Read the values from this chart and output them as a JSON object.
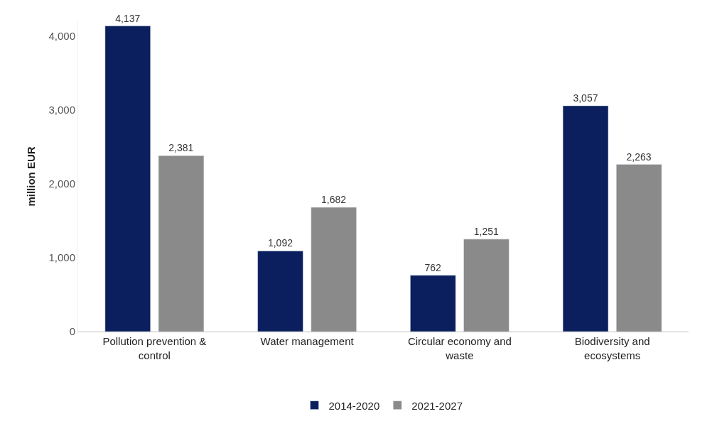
{
  "chart_data": {
    "type": "bar",
    "ylabel": "million EUR",
    "categories": [
      "Pollution prevention & control",
      "Water management",
      "Circular economy and waste",
      "Biodiversity and ecosystems"
    ],
    "series": [
      {
        "name": "2014-2020",
        "color": "#0b1f5e",
        "values": [
          4137,
          1092,
          762,
          3057
        ],
        "value_labels": [
          "4,137",
          "1,092",
          "762",
          "3,057"
        ]
      },
      {
        "name": "2021-2027",
        "color": "#8a8a8a",
        "values": [
          2381,
          1682,
          1251,
          2263
        ],
        "value_labels": [
          "2,381",
          "1,682",
          "1,251",
          "2,263"
        ]
      }
    ],
    "ylim": [
      0,
      4200
    ],
    "yticks": [
      {
        "value": 0,
        "label": "0"
      },
      {
        "value": 1000,
        "label": "1,000"
      },
      {
        "value": 2000,
        "label": "2,000"
      },
      {
        "value": 3000,
        "label": "3,000"
      },
      {
        "value": 4000,
        "label": "4,000"
      }
    ],
    "legend": "bottom"
  }
}
